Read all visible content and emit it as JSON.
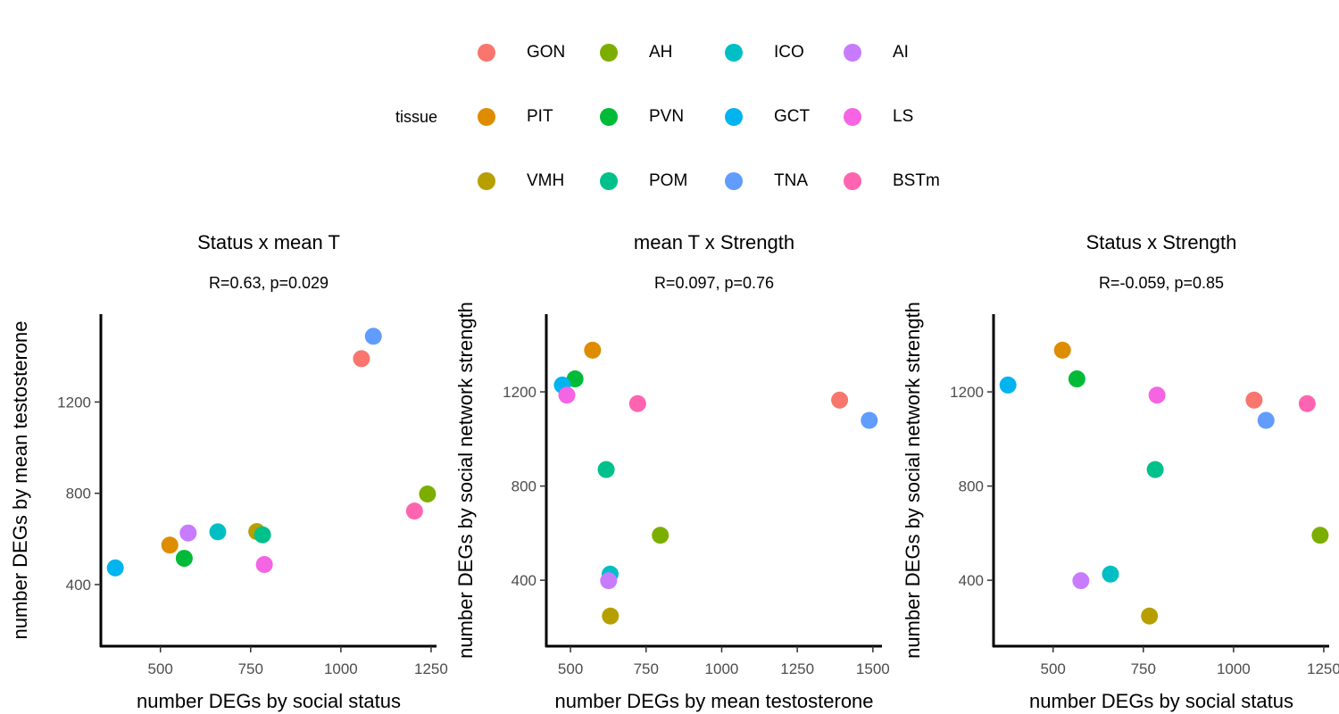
{
  "legend": {
    "title": "tissue",
    "items": [
      {
        "name": "GON",
        "color": "#F8766D"
      },
      {
        "name": "AH",
        "color": "#7CAE00"
      },
      {
        "name": "ICO",
        "color": "#00BFC4"
      },
      {
        "name": "AI",
        "color": "#C77CFF"
      },
      {
        "name": "PIT",
        "color": "#DE8C00"
      },
      {
        "name": "PVN",
        "color": "#00BA38"
      },
      {
        "name": "GCT",
        "color": "#00B4F0"
      },
      {
        "name": "LS",
        "color": "#F564E3"
      },
      {
        "name": "VMH",
        "color": "#B79F00"
      },
      {
        "name": "POM",
        "color": "#00C08B"
      },
      {
        "name": "TNA",
        "color": "#619CFF"
      },
      {
        "name": "BSTm",
        "color": "#FF64B0"
      }
    ]
  },
  "chart_data": [
    {
      "type": "scatter",
      "title": "Status x mean T",
      "subtitle": "R=0.63, p=0.029",
      "xlabel": "number DEGs by social status",
      "ylabel": "number DEGs by mean testosterone",
      "xlim": [
        335,
        1265
      ],
      "ylim": [
        130,
        1585
      ],
      "xticks": [
        500,
        750,
        1000,
        1250
      ],
      "yticks": [
        400,
        800,
        1200
      ],
      "points": [
        {
          "tissue": "GON",
          "x": 1057,
          "y": 1390
        },
        {
          "tissue": "TNA",
          "x": 1090,
          "y": 1488
        },
        {
          "tissue": "AH",
          "x": 1240,
          "y": 797
        },
        {
          "tissue": "BSTm",
          "x": 1204,
          "y": 722
        },
        {
          "tissue": "VMH",
          "x": 767,
          "y": 632
        },
        {
          "tissue": "POM",
          "x": 783,
          "y": 618
        },
        {
          "tissue": "ICO",
          "x": 659,
          "y": 631
        },
        {
          "tissue": "AI",
          "x": 577,
          "y": 626
        },
        {
          "tissue": "PIT",
          "x": 526,
          "y": 573
        },
        {
          "tissue": "PVN",
          "x": 566,
          "y": 515
        },
        {
          "tissue": "LS",
          "x": 788,
          "y": 488
        },
        {
          "tissue": "GCT",
          "x": 375,
          "y": 473
        }
      ]
    },
    {
      "type": "scatter",
      "title": "mean T x Strength",
      "subtitle": "R=0.097, p=0.76",
      "xlabel": "number DEGs by mean testosterone",
      "ylabel": "number DEGs by social network strength",
      "xlim": [
        420,
        1530
      ],
      "ylim": [
        120,
        1530
      ],
      "xticks": [
        500,
        750,
        1000,
        1250,
        1500
      ],
      "yticks": [
        400,
        800,
        1200
      ],
      "points": [
        {
          "tissue": "PIT",
          "x": 573,
          "y": 1377
        },
        {
          "tissue": "PVN",
          "x": 515,
          "y": 1255
        },
        {
          "tissue": "GCT",
          "x": 473,
          "y": 1229
        },
        {
          "tissue": "LS",
          "x": 488,
          "y": 1186
        },
        {
          "tissue": "BSTm",
          "x": 722,
          "y": 1150
        },
        {
          "tissue": "GON",
          "x": 1390,
          "y": 1165
        },
        {
          "tissue": "TNA",
          "x": 1488,
          "y": 1079
        },
        {
          "tissue": "POM",
          "x": 618,
          "y": 870
        },
        {
          "tissue": "AH",
          "x": 797,
          "y": 591
        },
        {
          "tissue": "ICO",
          "x": 631,
          "y": 426
        },
        {
          "tissue": "AI",
          "x": 626,
          "y": 398
        },
        {
          "tissue": "VMH",
          "x": 632,
          "y": 248
        }
      ]
    },
    {
      "type": "scatter",
      "title": "Status x Strength",
      "subtitle": "R=-0.059, p=0.85",
      "xlabel": "number DEGs by social status",
      "ylabel": "number DEGs by social network strength",
      "xlim": [
        335,
        1265
      ],
      "ylim": [
        120,
        1530
      ],
      "xticks": [
        500,
        750,
        1000,
        1250
      ],
      "yticks": [
        400,
        800,
        1200
      ],
      "points": [
        {
          "tissue": "PIT",
          "x": 526,
          "y": 1377
        },
        {
          "tissue": "PVN",
          "x": 566,
          "y": 1255
        },
        {
          "tissue": "GCT",
          "x": 375,
          "y": 1229
        },
        {
          "tissue": "LS",
          "x": 788,
          "y": 1186
        },
        {
          "tissue": "GON",
          "x": 1057,
          "y": 1165
        },
        {
          "tissue": "BSTm",
          "x": 1204,
          "y": 1150
        },
        {
          "tissue": "TNA",
          "x": 1090,
          "y": 1079
        },
        {
          "tissue": "POM",
          "x": 783,
          "y": 870
        },
        {
          "tissue": "AH",
          "x": 1240,
          "y": 591
        },
        {
          "tissue": "ICO",
          "x": 659,
          "y": 426
        },
        {
          "tissue": "AI",
          "x": 577,
          "y": 398
        },
        {
          "tissue": "VMH",
          "x": 767,
          "y": 248
        }
      ]
    }
  ]
}
